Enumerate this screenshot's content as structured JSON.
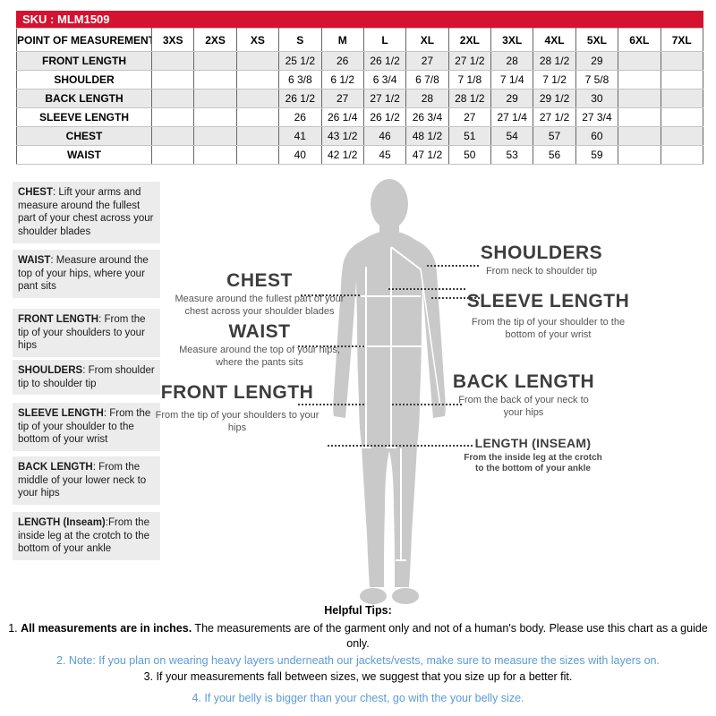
{
  "sku_bar": {
    "label": "SKU : MLM1509"
  },
  "size_chart": {
    "header": [
      "POINT OF MEASUREMENT",
      "3XS",
      "2XS",
      "XS",
      "S",
      "M",
      "L",
      "XL",
      "2XL",
      "3XL",
      "4XL",
      "5XL",
      "6XL",
      "7XL"
    ],
    "rows": [
      {
        "label": "FRONT LENGTH",
        "values": [
          "",
          "",
          "",
          "25 1/2",
          "26",
          "26 1/2",
          "27",
          "27 1/2",
          "28",
          "28 1/2",
          "29",
          "",
          ""
        ]
      },
      {
        "label": "SHOULDER",
        "values": [
          "",
          "",
          "",
          "6 3/8",
          "6 1/2",
          "6 3/4",
          "6 7/8",
          "7 1/8",
          "7 1/4",
          "7 1/2",
          "7 5/8",
          "",
          ""
        ]
      },
      {
        "label": "BACK LENGTH",
        "values": [
          "",
          "",
          "",
          "26 1/2",
          "27",
          "27 1/2",
          "28",
          "28 1/2",
          "29",
          "29 1/2",
          "30",
          "",
          ""
        ]
      },
      {
        "label": "SLEEVE LENGTH",
        "values": [
          "",
          "",
          "",
          "26",
          "26 1/4",
          "26 1/2",
          "26 3/4",
          "27",
          "27 1/4",
          "27 1/2",
          "27 3/4",
          "",
          ""
        ]
      },
      {
        "label": "CHEST",
        "values": [
          "",
          "",
          "",
          "41",
          "43 1/2",
          "46",
          "48 1/2",
          "51",
          "54",
          "57",
          "60",
          "",
          ""
        ]
      },
      {
        "label": "WAIST",
        "values": [
          "",
          "",
          "",
          "40",
          "42 1/2",
          "45",
          "47 1/2",
          "50",
          "53",
          "56",
          "59",
          "",
          ""
        ]
      }
    ]
  },
  "definitions": [
    {
      "term": "CHEST",
      "text": ": Lift your arms  and measure around the fullest part of your chest across your shoulder blades"
    },
    {
      "term": "WAIST",
      "text": ":  Measure around the top of your hips, where your pant sits"
    },
    {
      "term": "FRONT LENGTH",
      "text": ": From the tip of your shoulders to your hips"
    },
    {
      "term": "SHOULDERS",
      "text": ": From shoulder tip to shoulder tip"
    },
    {
      "term": "SLEEVE LENGTH",
      "text": ": From the tip of your shoulder to the bottom of your wrist"
    },
    {
      "term": "BACK LENGTH",
      "text": ": From the middle of your lower neck to your hips"
    },
    {
      "term": "LENGTH (Inseam)",
      "text": ":From the inside leg at the crotch to the bottom of your ankle"
    }
  ],
  "diagram": {
    "figure": "male-body-silhouette",
    "labels": {
      "chest": {
        "title": "CHEST",
        "desc": "Measure around the fullest part of your chest across your shoulder blades"
      },
      "waist": {
        "title": "WAIST",
        "desc": "Measure around the top of your hips, where the pants sits"
      },
      "front_length": {
        "title": "FRONT LENGTH",
        "desc": "From the tip of your shoulders to your hips"
      },
      "shoulders": {
        "title": "SHOULDERS",
        "desc": "From neck to shoulder tip"
      },
      "sleeve_length": {
        "title": "SLEEVE LENGTH",
        "desc": "From the tip of your shoulder to the bottom of your wrist"
      },
      "back_length": {
        "title": "BACK LENGTH",
        "desc": "From the back of your neck to your hips"
      },
      "length_inseam": {
        "title": "LENGTH (INSEAM)",
        "desc": "From the inside leg at the crotch to the bottom of your ankle"
      }
    }
  },
  "tips": {
    "title": "Helpful Tips:",
    "items": [
      {
        "lead": "1. ",
        "bold": "All measurements are in inches.",
        "text": " The measurements are of the garment only and not of a human's body. Please use this chart as a guide only.",
        "color": "#000000"
      },
      {
        "lead": "",
        "bold": "",
        "text": "2. Note: If you plan on wearing heavy layers underneath our jackets/vests, make sure to measure the sizes with layers on.",
        "color": "#5b9bd5"
      },
      {
        "lead": "",
        "bold": "",
        "text": "3. If your measurements fall between sizes, we suggest that you size up for a better fit.",
        "color": "#000000"
      },
      {
        "lead": "",
        "bold": "",
        "text": "4. If your belly is bigger than your chest, go with the your belly size.",
        "color": "#5b9bd5"
      }
    ]
  },
  "colors": {
    "accent_red": "#d5122f",
    "tip_blue": "#5b9bd5",
    "row_stripe": "#e9e9e9",
    "definition_bg": "#ececec",
    "silhouette_gray": "#c9c9c9"
  }
}
